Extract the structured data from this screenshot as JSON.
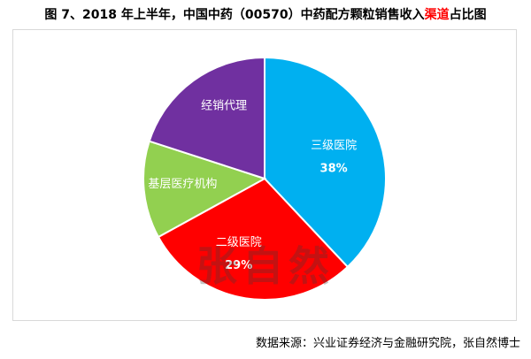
{
  "chart_data": {
    "type": "pie",
    "title_parts": [
      "图 7、2018 年上半年，中国中药（00570）中药配方颗粒销售收入",
      "渠道",
      "占比图"
    ],
    "slices": [
      {
        "label": "三级医院",
        "value": 38,
        "value_label": "38%",
        "color": "#00b0f0"
      },
      {
        "label": "二级医院",
        "value": 29,
        "value_label": "29%",
        "color": "#ff0000"
      },
      {
        "label": "基层医疗机构",
        "value": 13,
        "value_label": "",
        "color": "#92d050"
      },
      {
        "label": "经销代理",
        "value": 20,
        "value_label": "",
        "color": "#7030a0"
      }
    ],
    "start_angle_deg": 0,
    "direction": "clockwise",
    "legend": "none"
  },
  "watermark": "张自然",
  "source": "数据来源：兴业证券经济与金融研究院，张自然博士"
}
